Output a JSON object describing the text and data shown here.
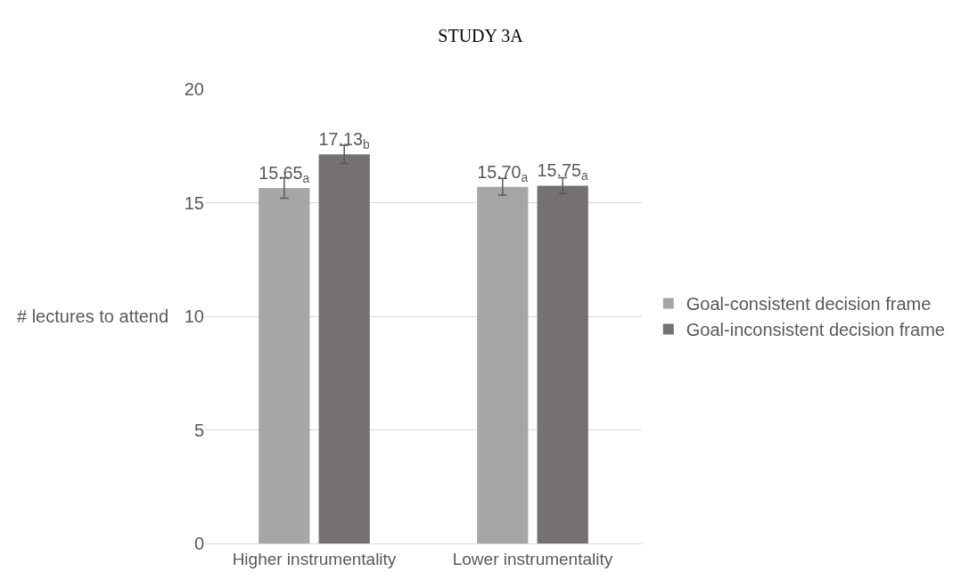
{
  "chart_data": {
    "type": "bar",
    "title": "STUDY 3A",
    "ylabel": "# lectures to attend",
    "categories": [
      "Higher instrumentality",
      "Lower instrumentality"
    ],
    "series": [
      {
        "name": "Goal-consistent decision frame",
        "color": "#a6a6a6",
        "values": [
          15.65,
          15.7
        ],
        "errors": [
          0.45,
          0.37
        ],
        "value_labels": [
          "15.65$_{a}$",
          "15.70$_{a}$"
        ]
      },
      {
        "name": "Goal-inconsistent decision frame",
        "color": "#767171",
        "values": [
          17.13,
          15.75
        ],
        "errors": [
          0.4,
          0.35
        ],
        "value_labels": [
          "17.13$_{b}$",
          "15.75$_{a}$"
        ]
      }
    ],
    "ylim": [
      0,
      20
    ],
    "yticks": [
      0,
      5,
      10,
      15,
      20
    ],
    "grid": "y",
    "legend": "right"
  }
}
